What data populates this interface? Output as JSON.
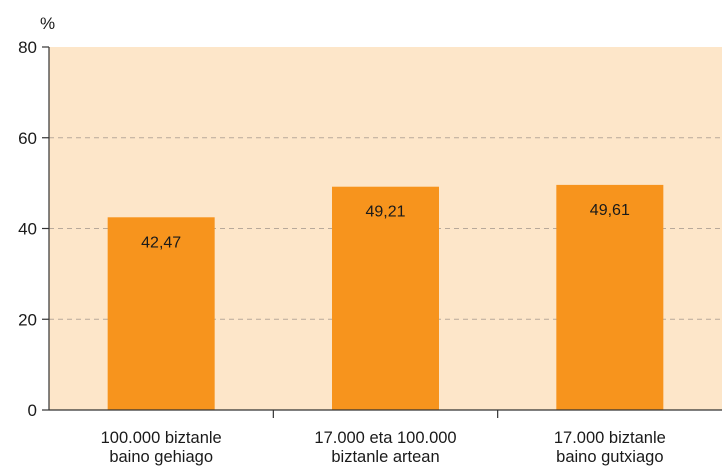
{
  "chart_data": {
    "type": "bar",
    "unit": "%",
    "categories": [
      [
        "100.000 biztanle",
        "baino gehiago"
      ],
      [
        "17.000 eta 100.000",
        "biztanle artean"
      ],
      [
        "17.000 biztanle",
        "baino gutxiago"
      ]
    ],
    "values": [
      42.47,
      49.21,
      49.61
    ],
    "value_labels": [
      "42,47",
      "49,21",
      "49,61"
    ],
    "ylim": [
      0,
      80
    ],
    "yticks": [
      0,
      20,
      40,
      60,
      80
    ],
    "grid": true,
    "colors": {
      "bar": "#f7941d",
      "plot_background": "#fde6c9",
      "gridline": "#b8a99a",
      "axis": "#333333"
    }
  }
}
